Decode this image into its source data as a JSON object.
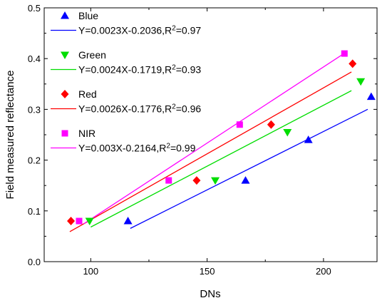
{
  "chart_data": {
    "type": "scatter",
    "xlabel": "DNs",
    "ylabel": "Field measured reflectance",
    "xlim": [
      80,
      223
    ],
    "ylim": [
      0.0,
      0.5
    ],
    "xticks": [
      100,
      150,
      200
    ],
    "yticks": [
      0.0,
      0.1,
      0.2,
      0.3,
      0.4,
      0.5
    ],
    "xtick_labels": [
      "100",
      "150",
      "200"
    ],
    "ytick_labels": [
      "0.0",
      "0.1",
      "0.2",
      "0.3",
      "0.4",
      "0.5"
    ],
    "grid": false,
    "legend_position": "top-left",
    "series": [
      {
        "name": "Blue",
        "color": "#0000ff",
        "marker": "triangle-up",
        "points": [
          [
            116,
            0.08
          ],
          [
            166.5,
            0.16
          ],
          [
            193.5,
            0.24
          ],
          [
            220.5,
            0.325
          ]
        ],
        "fit": {
          "label_parts": [
            "Y=0.0023X-0.2036,R",
            "2",
            "=0.97"
          ],
          "slope": 0.0023,
          "intercept": -0.2036,
          "x_range": [
            117,
            219
          ]
        }
      },
      {
        "name": "Green",
        "color": "#00dd00",
        "marker": "triangle-down",
        "points": [
          [
            99.5,
            0.08
          ],
          [
            153.5,
            0.16
          ],
          [
            184.5,
            0.255
          ],
          [
            216,
            0.355
          ]
        ],
        "fit": {
          "label_parts": [
            "Y=0.0024X-0.1719,R",
            "2",
            "=0.93"
          ],
          "slope": 0.0024,
          "intercept": -0.1719,
          "x_range": [
            100,
            212
          ]
        }
      },
      {
        "name": "Red",
        "color": "#ff0000",
        "marker": "diamond",
        "points": [
          [
            91.5,
            0.08
          ],
          [
            145.5,
            0.16
          ],
          [
            177.5,
            0.27
          ],
          [
            212.5,
            0.39
          ]
        ],
        "fit": {
          "label_parts": [
            "Y=0.0026X-0.1776,R",
            "2",
            "=0.96"
          ],
          "slope": 0.0026,
          "intercept": -0.1776,
          "x_range": [
            91,
            212
          ]
        }
      },
      {
        "name": "NIR",
        "color": "#ff00ff",
        "marker": "square",
        "points": [
          [
            95,
            0.08
          ],
          [
            133.5,
            0.16
          ],
          [
            164,
            0.27
          ],
          [
            209,
            0.41
          ]
        ],
        "fit": {
          "label_parts": [
            "Y=0.003X-0.2164,R",
            "2",
            "=0.99"
          ],
          "slope": 0.003,
          "intercept": -0.2164,
          "x_range": [
            97,
            209
          ]
        }
      }
    ]
  }
}
